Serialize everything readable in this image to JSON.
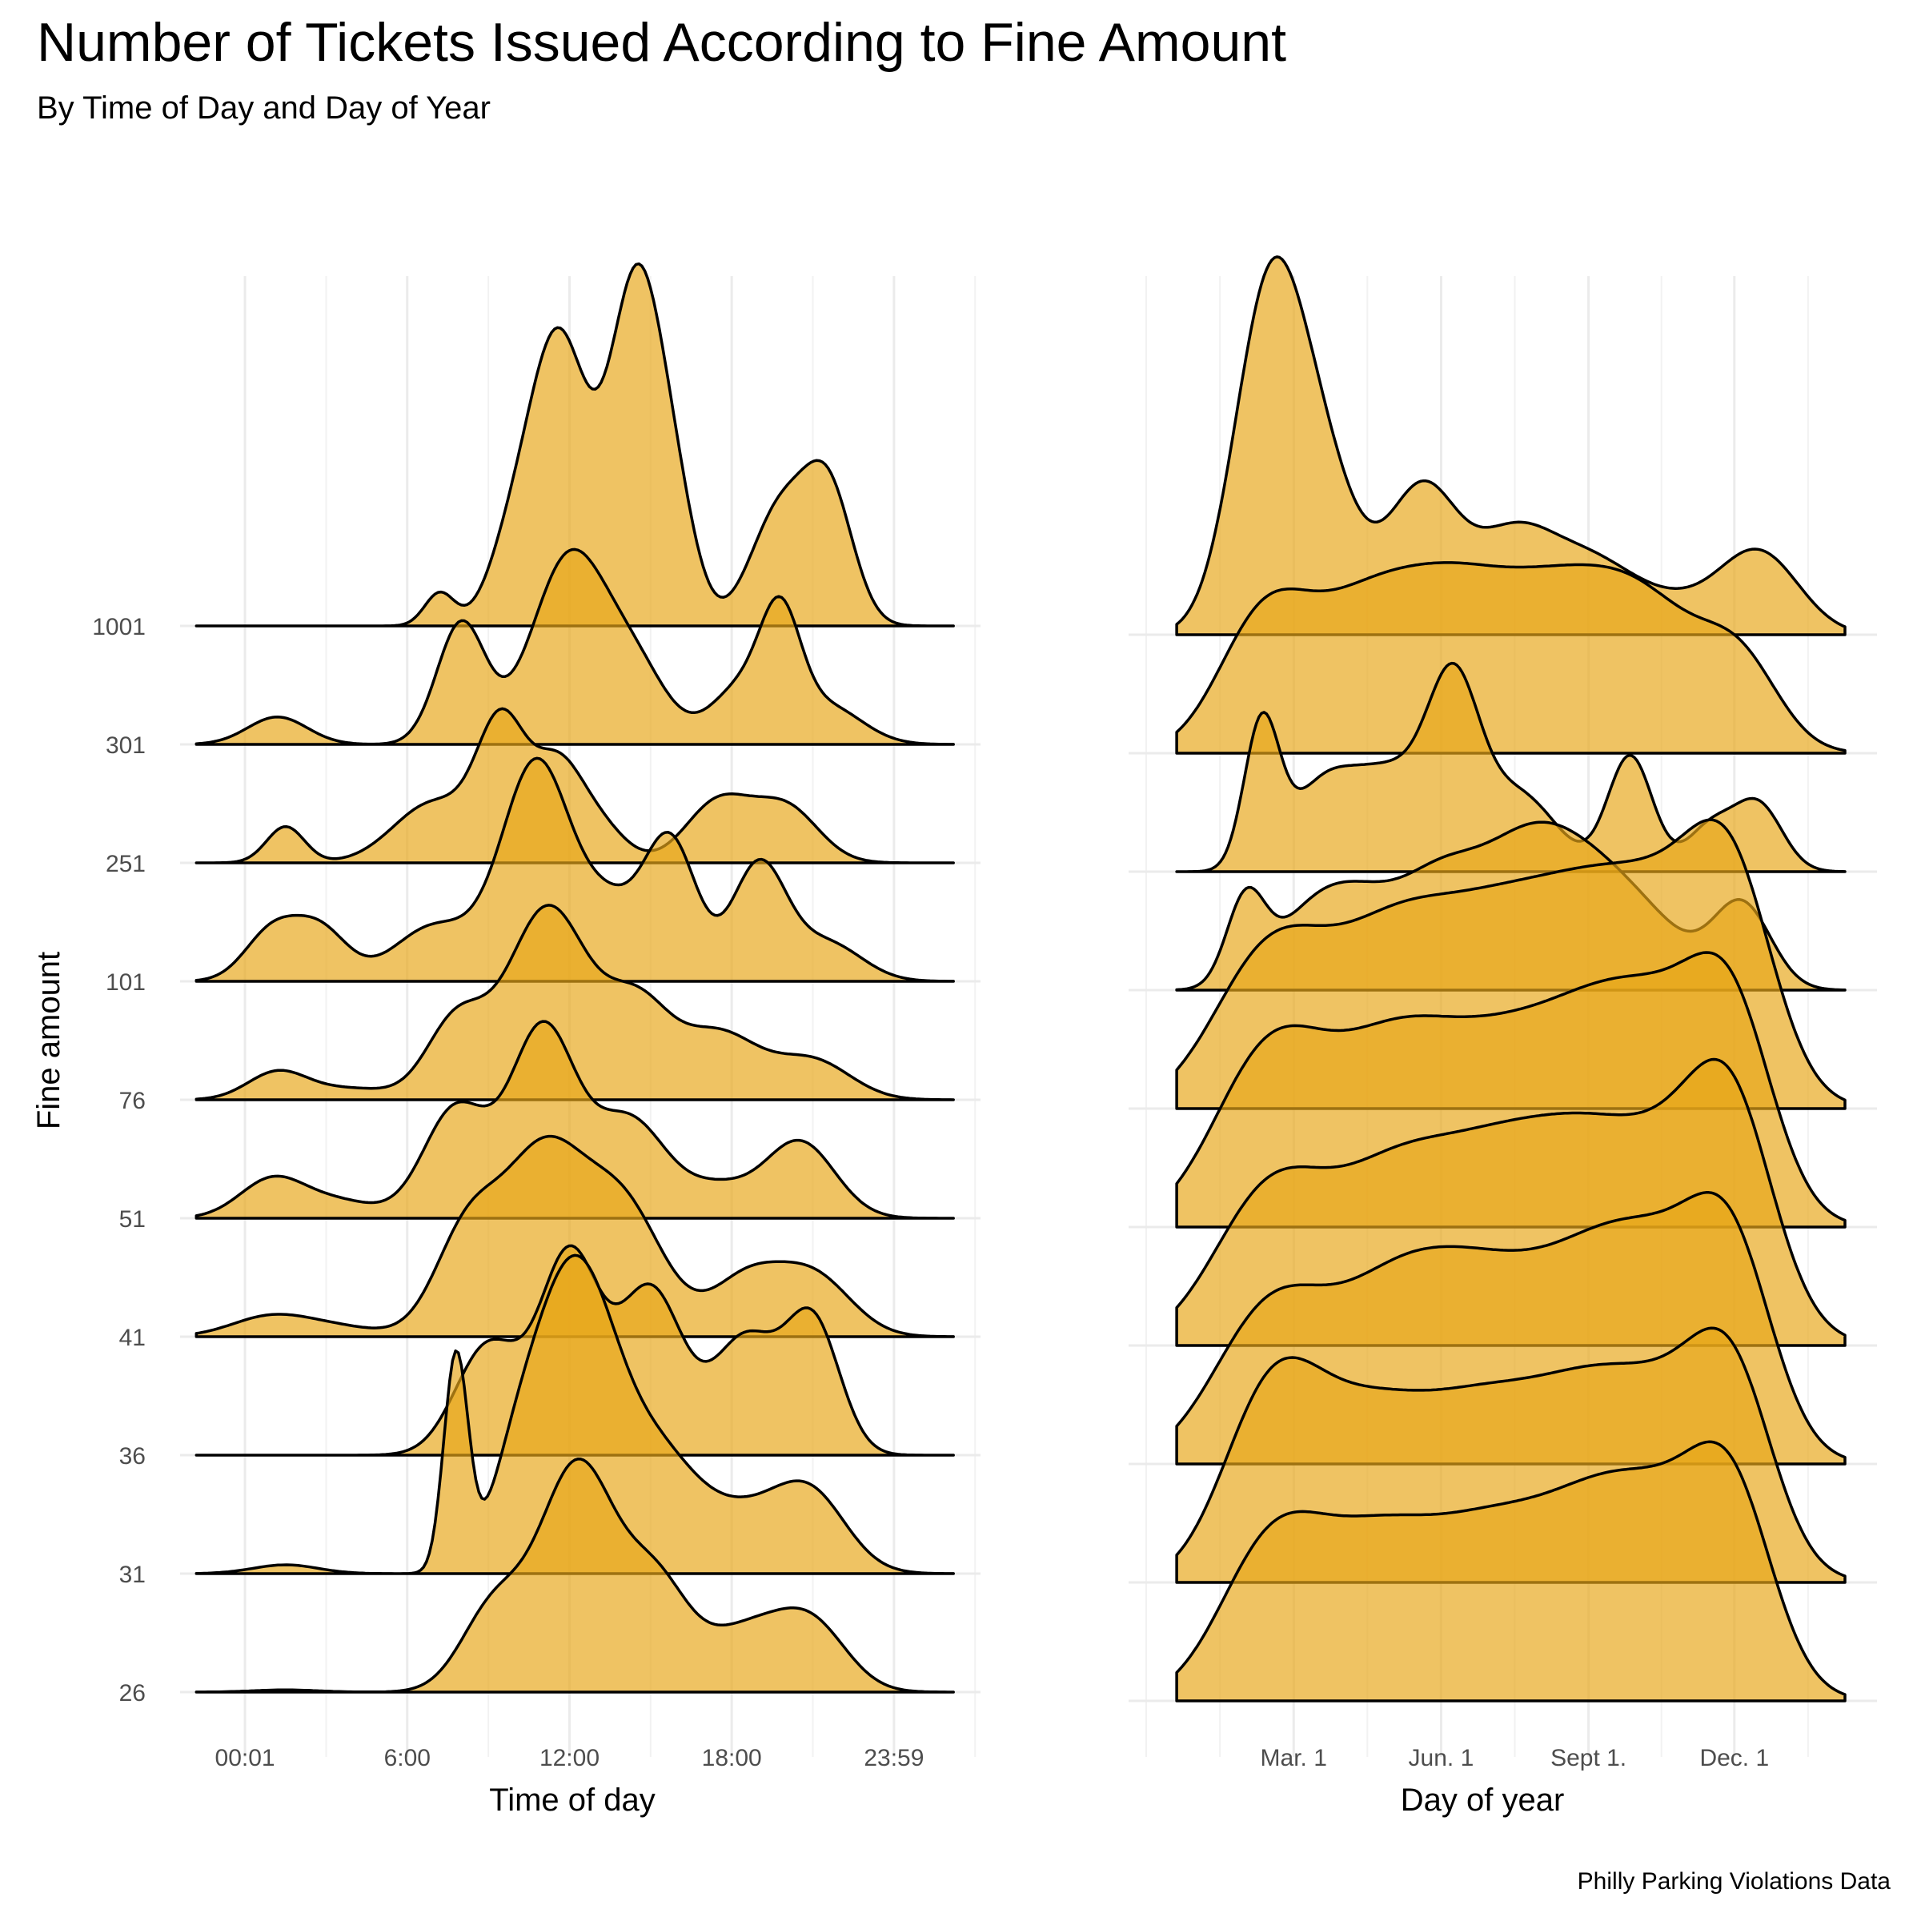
{
  "colors": {
    "fill": "#E8A619",
    "line": "#000000",
    "grid": "#EBEBEB"
  },
  "chart_data": {
    "type": "ridgeline",
    "title": "Number of Tickets Issued According to Fine Amount",
    "subtitle": "By Time of Day and Day of Year",
    "caption": "Philly Parking Violations Data",
    "ylabel": "Fine amount",
    "categories": [
      "26",
      "31",
      "36",
      "41",
      "51",
      "76",
      "101",
      "251",
      "301",
      "1001"
    ],
    "panels": [
      {
        "name": "time-of-day",
        "xlabel": "Time of day",
        "x_unit": "hours",
        "xlim": [
          -2.4,
          27.2
        ],
        "tick_values": [
          0,
          6,
          12,
          18,
          24
        ],
        "tick_labels": [
          "00:01",
          "6:00",
          "12:00",
          "18:00",
          "23:59"
        ],
        "x_range": [
          -1.8,
          26.2
        ],
        "series": [
          {
            "name": "26",
            "peaks": [
              [
                1.5,
                0.02,
                1.2
              ],
              [
                9.2,
                0.75,
                1.2
              ],
              [
                12.3,
                2.05,
                1.4
              ],
              [
                15.2,
                0.9,
                1.2
              ],
              [
                18.5,
                0.55,
                1.6
              ],
              [
                21.0,
                0.55,
                1.3
              ]
            ]
          },
          {
            "name": "31",
            "peaks": [
              [
                1.5,
                0.08,
                1.2
              ],
              [
                7.8,
                1.95,
                0.45
              ],
              [
                10.0,
                0.9,
                1.0
              ],
              [
                11.5,
                1.4,
                1.1
              ],
              [
                12.8,
                1.7,
                1.2
              ],
              [
                15.0,
                1.0,
                1.5
              ],
              [
                18.5,
                0.55,
                2.0
              ],
              [
                21.0,
                0.55,
                1.3
              ]
            ]
          },
          {
            "name": "36",
            "peaks": [
              [
                9.0,
                1.0,
                1.2
              ],
              [
                12.0,
                1.8,
                1.1
              ],
              [
                15.0,
                1.5,
                1.2
              ],
              [
                18.5,
                1.05,
                1.2
              ],
              [
                21.0,
                1.2,
                1.0
              ]
            ]
          },
          {
            "name": "41",
            "peaks": [
              [
                0.8,
                0.15,
                1.4
              ],
              [
                3.0,
                0.1,
                1.8
              ],
              [
                8.2,
                0.9,
                1.2
              ],
              [
                11.0,
                1.6,
                1.5
              ],
              [
                14.0,
                1.15,
                1.5
              ],
              [
                18.5,
                0.5,
                1.3
              ],
              [
                21.0,
                0.55,
                1.4
              ]
            ]
          },
          {
            "name": "51",
            "peaks": [
              [
                1.0,
                0.35,
                1.2
              ],
              [
                3.5,
                0.15,
                1.4
              ],
              [
                7.8,
                1.0,
                1.2
              ],
              [
                11.0,
                1.7,
                1.2
              ],
              [
                14.2,
                0.9,
                1.4
              ],
              [
                17.5,
                0.25,
                1.2
              ],
              [
                20.5,
                0.7,
                1.3
              ]
            ]
          },
          {
            "name": "76",
            "peaks": [
              [
                1.2,
                0.25,
                1.1
              ],
              [
                4.0,
                0.1,
                1.5
              ],
              [
                7.8,
                0.7,
                1.1
              ],
              [
                11.2,
                1.75,
                1.5
              ],
              [
                14.5,
                0.8,
                1.2
              ],
              [
                17.5,
                0.6,
                1.5
              ],
              [
                21.0,
                0.35,
                1.4
              ]
            ]
          },
          {
            "name": "101",
            "peaks": [
              [
                1.0,
                0.45,
                1.0
              ],
              [
                2.8,
                0.45,
                1.0
              ],
              [
                7.0,
                0.5,
                1.5
              ],
              [
                10.8,
                2.0,
                1.3
              ],
              [
                13.5,
                0.55,
                1.0
              ],
              [
                15.7,
                1.3,
                1.0
              ],
              [
                19.0,
                1.05,
                1.0
              ],
              [
                21.5,
                0.35,
                1.3
              ]
            ]
          },
          {
            "name": "251",
            "peaks": [
              [
                1.5,
                0.33,
                0.7
              ],
              [
                7.0,
                0.55,
                1.5
              ],
              [
                9.5,
                1.2,
                0.9
              ],
              [
                11.5,
                0.8,
                0.9
              ],
              [
                13.0,
                0.35,
                1.0
              ],
              [
                17.5,
                0.55,
                1.2
              ],
              [
                20.0,
                0.5,
                1.2
              ]
            ]
          },
          {
            "name": "301",
            "peaks": [
              [
                1.2,
                0.25,
                1.1
              ],
              [
                8.0,
                1.1,
                0.9
              ],
              [
                12.0,
                1.7,
                1.4
              ],
              [
                14.5,
                0.6,
                1.2
              ],
              [
                18.3,
                0.5,
                1.1
              ],
              [
                19.8,
                1.0,
                0.75
              ],
              [
                21.5,
                0.35,
                1.3
              ]
            ]
          },
          {
            "name": "1001",
            "peaks": [
              [
                7.2,
                0.3,
                0.55
              ],
              [
                9.8,
                0.55,
                0.9
              ],
              [
                11.6,
                2.6,
                1.1
              ],
              [
                14.5,
                3.1,
                1.0
              ],
              [
                16.0,
                0.7,
                0.8
              ],
              [
                19.8,
                1.05,
                1.1
              ],
              [
                21.6,
                1.15,
                0.9
              ]
            ]
          }
        ]
      },
      {
        "name": "day-of-year",
        "xlabel": "Day of year",
        "x_unit": "day",
        "xlim": [
          -43,
          424
        ],
        "tick_values": [
          60,
          152,
          244,
          335
        ],
        "tick_labels": [
          "Mar. 1",
          "Jun. 1",
          "Sept 1.",
          "Dec. 1"
        ],
        "x_range": [
          -13,
          404
        ],
        "series": [
          {
            "name": "26",
            "peaks": [
              [
                45,
                1.3,
                32
              ],
              [
                110,
                1.3,
                38
              ],
              [
                180,
                1.22,
                38
              ],
              [
                245,
                1.3,
                38
              ],
              [
                300,
                1.3,
                38
              ],
              [
                335,
                1.25,
                25
              ]
            ]
          },
          {
            "name": "31",
            "peaks": [
              [
                45,
                1.55,
                30
              ],
              [
                105,
                1.35,
                38
              ],
              [
                175,
                1.25,
                38
              ],
              [
                240,
                1.3,
                38
              ],
              [
                300,
                1.3,
                38
              ],
              [
                335,
                1.25,
                25
              ]
            ]
          },
          {
            "name": "36",
            "peaks": [
              [
                45,
                1.35,
                35
              ],
              [
                120,
                1.35,
                38
              ],
              [
                180,
                1.25,
                38
              ],
              [
                245,
                1.35,
                38
              ],
              [
                300,
                1.42,
                38
              ],
              [
                335,
                1.25,
                25
              ]
            ]
          },
          {
            "name": "41",
            "peaks": [
              [
                45,
                1.35,
                35
              ],
              [
                120,
                1.35,
                38
              ],
              [
                185,
                1.3,
                38
              ],
              [
                245,
                1.4,
                38
              ],
              [
                310,
                1.45,
                38
              ],
              [
                335,
                1.2,
                25
              ]
            ]
          },
          {
            "name": "51",
            "peaks": [
              [
                45,
                1.55,
                35
              ],
              [
                120,
                1.45,
                38
              ],
              [
                185,
                1.2,
                38
              ],
              [
                245,
                1.35,
                38
              ],
              [
                300,
                1.45,
                38
              ],
              [
                335,
                1.25,
                25
              ]
            ]
          },
          {
            "name": "76",
            "peaks": [
              [
                45,
                1.38,
                35
              ],
              [
                120,
                1.4,
                38
              ],
              [
                185,
                1.3,
                38
              ],
              [
                245,
                1.4,
                38
              ],
              [
                305,
                1.5,
                38
              ],
              [
                335,
                1.25,
                25
              ]
            ]
          },
          {
            "name": "101",
            "peaks": [
              [
                30,
                0.75,
                12
              ],
              [
                70,
                0.6,
                25
              ],
              [
                105,
                0.6,
                25
              ],
              [
                150,
                0.8,
                25
              ],
              [
                200,
                1.05,
                30
              ],
              [
                240,
                0.75,
                30
              ],
              [
                280,
                0.5,
                30
              ],
              [
                340,
                0.75,
                18
              ]
            ]
          },
          {
            "name": "251",
            "peaks": [
              [
                40,
                1.3,
                11
              ],
              [
                75,
                0.6,
                20
              ],
              [
                120,
                0.9,
                28
              ],
              [
                160,
                1.4,
                16
              ],
              [
                200,
                0.7,
                24
              ],
              [
                270,
                1.05,
                14
              ],
              [
                320,
                0.4,
                15
              ],
              [
                350,
                0.6,
                15
              ]
            ]
          },
          {
            "name": "301",
            "peaks": [
              [
                40,
                1.1,
                28
              ],
              [
                100,
                1.15,
                36
              ],
              [
                160,
                1.18,
                36
              ],
              [
                220,
                1.05,
                36
              ],
              [
                280,
                1.25,
                38
              ],
              [
                340,
                0.65,
                24
              ]
            ]
          },
          {
            "name": "1001",
            "peaks": [
              [
                45,
                3.05,
                22
              ],
              [
                80,
                1.2,
                22
              ],
              [
                140,
                1.3,
                22
              ],
              [
                195,
                0.8,
                25
              ],
              [
                245,
                0.65,
                30
              ],
              [
                300,
                0.2,
                25
              ],
              [
                350,
                0.75,
                25
              ]
            ]
          }
        ]
      }
    ]
  }
}
